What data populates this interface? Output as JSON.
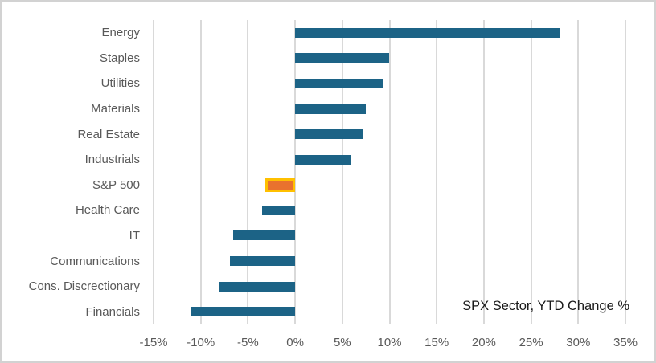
{
  "chart_data": {
    "type": "bar",
    "orientation": "horizontal",
    "title": "SPX Sector, YTD Change %",
    "categories": [
      "Energy",
      "Staples",
      "Utilities",
      "Materials",
      "Real Estate",
      "Industrials",
      "S&P 500",
      "Health Care",
      "IT",
      "Communications",
      "Cons. Discrectionary",
      "Financials"
    ],
    "values": [
      28.1,
      10.0,
      9.4,
      7.5,
      7.2,
      5.9,
      -3.2,
      -3.5,
      -6.6,
      -6.9,
      -8.0,
      -11.1
    ],
    "unit": "%",
    "highlight_category": "S&P 500",
    "xlim": [
      -15,
      35
    ],
    "x_tick_values": [
      -15,
      -10,
      -5,
      0,
      5,
      10,
      15,
      20,
      25,
      30,
      35
    ],
    "x_tick_labels": [
      "-15%",
      "-10%",
      "-5%",
      "0%",
      "5%",
      "10%",
      "15%",
      "20%",
      "25%",
      "30%",
      "35%"
    ],
    "grid": true,
    "legend": "none",
    "title_position": "bottom-right"
  },
  "colors": {
    "bar_default": "#1c6386",
    "bar_highlight_fill": "#e9722e",
    "bar_highlight_border": "#ffc000",
    "gridline": "#d9d9d9",
    "axis_text": "#595959",
    "title_text": "#1a1a1a",
    "frame_border": "#d2d2d2"
  }
}
